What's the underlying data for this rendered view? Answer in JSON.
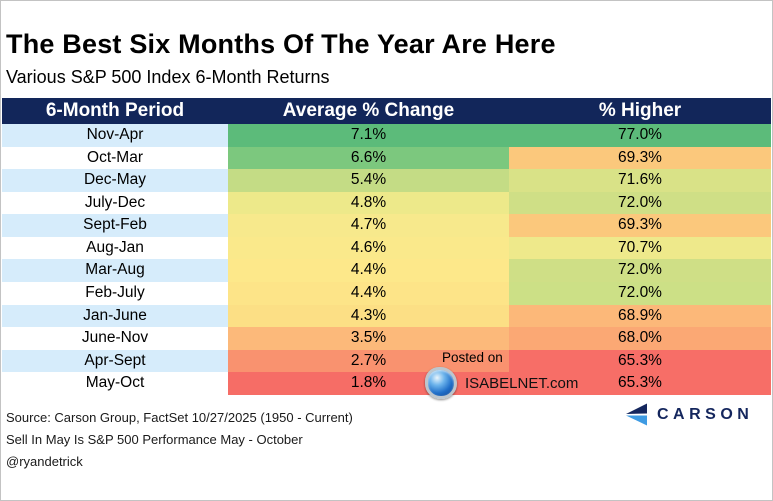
{
  "title": "The Best Six Months Of The Year Are Here",
  "subtitle": "Various S&P 500 Index 6-Month Returns",
  "table": {
    "headers": [
      "6-Month Period",
      "Average % Change",
      "% Higher"
    ],
    "rows": [
      {
        "period": "Nov-Apr",
        "avg": "7.1%",
        "higher": "77.0%",
        "avg_color": "#5cbb7a",
        "higher_color": "#5cbb7a"
      },
      {
        "period": "Oct-Mar",
        "avg": "6.6%",
        "higher": "69.3%",
        "avg_color": "#7cc87e",
        "higher_color": "#fbc87c"
      },
      {
        "period": "Dec-May",
        "avg": "5.4%",
        "higher": "71.6%",
        "avg_color": "#c4dc85",
        "higher_color": "#d9e287"
      },
      {
        "period": "July-Dec",
        "avg": "4.8%",
        "higher": "72.0%",
        "avg_color": "#ede98a",
        "higher_color": "#cfdf86"
      },
      {
        "period": "Sept-Feb",
        "avg": "4.7%",
        "higher": "69.3%",
        "avg_color": "#f7e98c",
        "higher_color": "#fbc87c"
      },
      {
        "period": "Aug-Jan",
        "avg": "4.6%",
        "higher": "70.7%",
        "avg_color": "#fae98b",
        "higher_color": "#eee98b"
      },
      {
        "period": "Mar-Aug",
        "avg": "4.4%",
        "higher": "72.0%",
        "avg_color": "#fde88a",
        "higher_color": "#cfdf86"
      },
      {
        "period": "Feb-July",
        "avg": "4.4%",
        "higher": "72.0%",
        "avg_color": "#fde488",
        "higher_color": "#cce086"
      },
      {
        "period": "Jan-June",
        "avg": "4.3%",
        "higher": "68.9%",
        "avg_color": "#fcdf85",
        "higher_color": "#fcb879"
      },
      {
        "period": "June-Nov",
        "avg": "3.5%",
        "higher": "68.0%",
        "avg_color": "#fcb97a",
        "higher_color": "#fba874"
      },
      {
        "period": "Apr-Sept",
        "avg": "2.7%",
        "higher": "65.3%",
        "avg_color": "#f9926f",
        "higher_color": "#f76e67"
      },
      {
        "period": "May-Oct",
        "avg": "1.8%",
        "higher": "65.3%",
        "avg_color": "#f66d66",
        "higher_color": "#f76e67"
      }
    ]
  },
  "watermark": {
    "line1": "Posted on",
    "line2": "ISABELNET.com"
  },
  "footer": {
    "source_line1": "Source: Carson Group, FactSet 10/27/2025 (1950 - Current)",
    "source_line2": "Sell In May Is S&P 500 Performance May - October",
    "source_line3": "@ryandetrick"
  },
  "brand": {
    "name": "CARSON",
    "navy": "#14265d",
    "blue": "#3e9be3"
  },
  "colors": {
    "header_bg": "#12265a",
    "header_text": "#ffffff",
    "period_odd_bg": "#d6ecfb",
    "period_even_bg": "#ffffff"
  },
  "chart_data": {
    "type": "table",
    "title": "The Best Six Months Of The Year Are Here",
    "subtitle": "Various S&P 500 Index 6-Month Returns",
    "columns": [
      "6-Month Period",
      "Average % Change",
      "% Higher"
    ],
    "categories": [
      "Nov-Apr",
      "Oct-Mar",
      "Dec-May",
      "July-Dec",
      "Sept-Feb",
      "Aug-Jan",
      "Mar-Aug",
      "Feb-July",
      "Jan-June",
      "June-Nov",
      "Apr-Sept",
      "May-Oct"
    ],
    "series": [
      {
        "name": "Average % Change",
        "unit": "%",
        "values": [
          7.1,
          6.6,
          5.4,
          4.8,
          4.7,
          4.6,
          4.4,
          4.4,
          4.3,
          3.5,
          2.7,
          1.8
        ]
      },
      {
        "name": "% Higher",
        "unit": "%",
        "values": [
          77.0,
          69.3,
          71.6,
          72.0,
          69.3,
          70.7,
          72.0,
          72.0,
          68.9,
          68.0,
          65.3,
          65.3
        ]
      }
    ],
    "layout_hints": "cells shaded on a green(high)-to-red(low) color scale; period column alternates light blue and white"
  }
}
